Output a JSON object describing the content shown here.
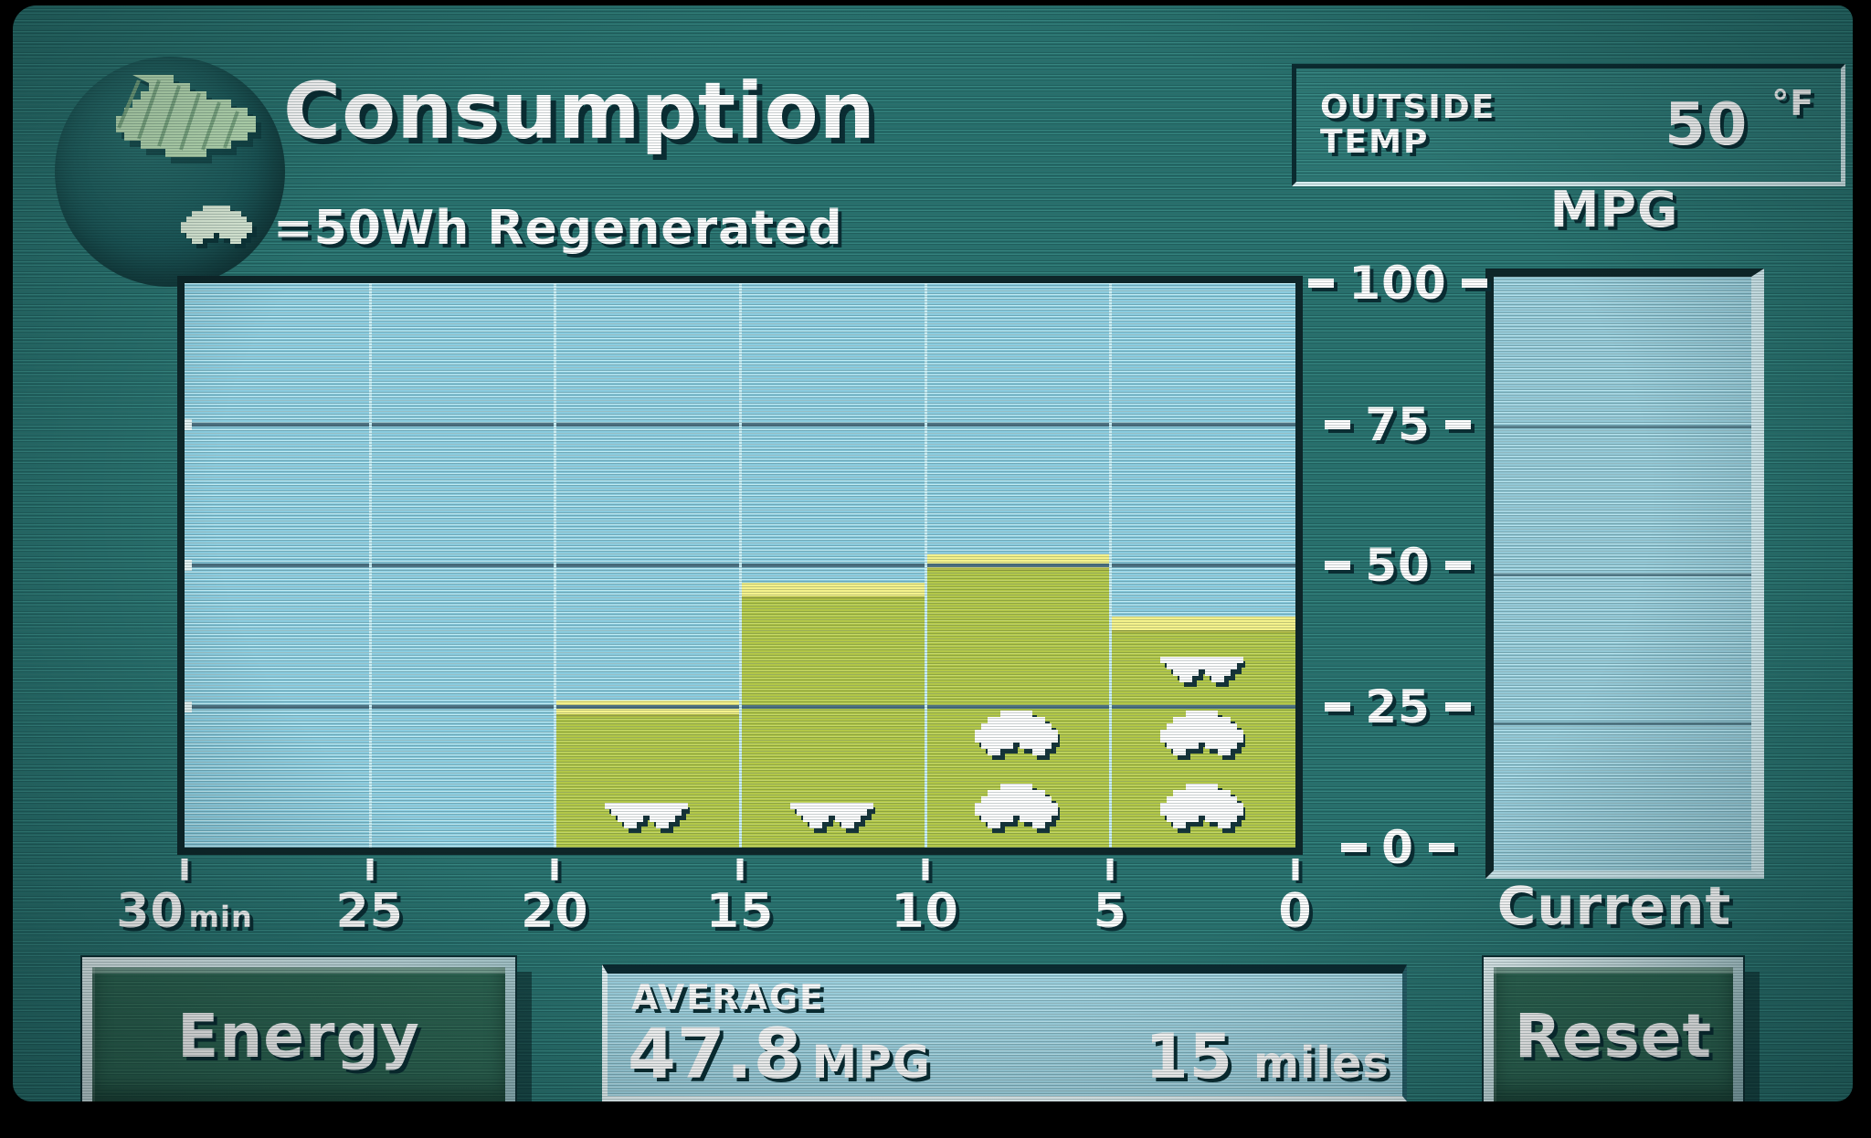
{
  "header": {
    "title": "Consumption",
    "legend_text": "=50Wh Regenerated"
  },
  "outside_temp": {
    "line1": "OUTSIDE",
    "line2": "TEMP",
    "value": "50",
    "unit": "°F"
  },
  "chart_data": {
    "type": "bar",
    "title": "Consumption",
    "ylabel": "MPG",
    "ylim": [
      0,
      100
    ],
    "y_ticks": [
      100,
      75,
      50,
      25,
      0
    ],
    "x_ticks": [
      {
        "label": "30",
        "suffix": "min"
      },
      {
        "label": "25",
        "suffix": ""
      },
      {
        "label": "20",
        "suffix": ""
      },
      {
        "label": "15",
        "suffix": ""
      },
      {
        "label": "10",
        "suffix": ""
      },
      {
        "label": "5",
        "suffix": ""
      },
      {
        "label": "0",
        "suffix": ""
      }
    ],
    "x_slots": 6,
    "grid": true,
    "legend_position": "top-left",
    "bars": [
      {
        "slot_index": 2,
        "range_min_ago": "20-15",
        "mpg": 26,
        "regen_icons": [
          "partial"
        ]
      },
      {
        "slot_index": 3,
        "range_min_ago": "15-10",
        "mpg": 47,
        "regen_icons": [
          "partial"
        ]
      },
      {
        "slot_index": 4,
        "range_min_ago": "10-5",
        "mpg": 52,
        "regen_icons": [
          "full",
          "full"
        ]
      },
      {
        "slot_index": 5,
        "range_min_ago": "5-0",
        "mpg": 41,
        "regen_icons": [
          "full",
          "full",
          "partial"
        ]
      }
    ],
    "regen_icon_unit_wh": 50,
    "current": {
      "header": "MPG",
      "label": "Current",
      "mpg": 0
    }
  },
  "average": {
    "label": "AVERAGE",
    "mpg_value": "47.8",
    "mpg_unit": "MPG",
    "distance_value": "15",
    "distance_unit": "miles"
  },
  "buttons": {
    "energy": "Energy",
    "reset": "Reset"
  },
  "colors": {
    "screen_teal": "#2b7a77",
    "chart_bg": "#8accdf",
    "grid_dark": "#4e7282",
    "grid_light": "#c9eef5",
    "bar_body": "#b2c748",
    "bar_cap": "#f4f28c",
    "button_green": "#2f6b55",
    "text": "#ffffff",
    "text_shadow": "#0a2d33"
  }
}
